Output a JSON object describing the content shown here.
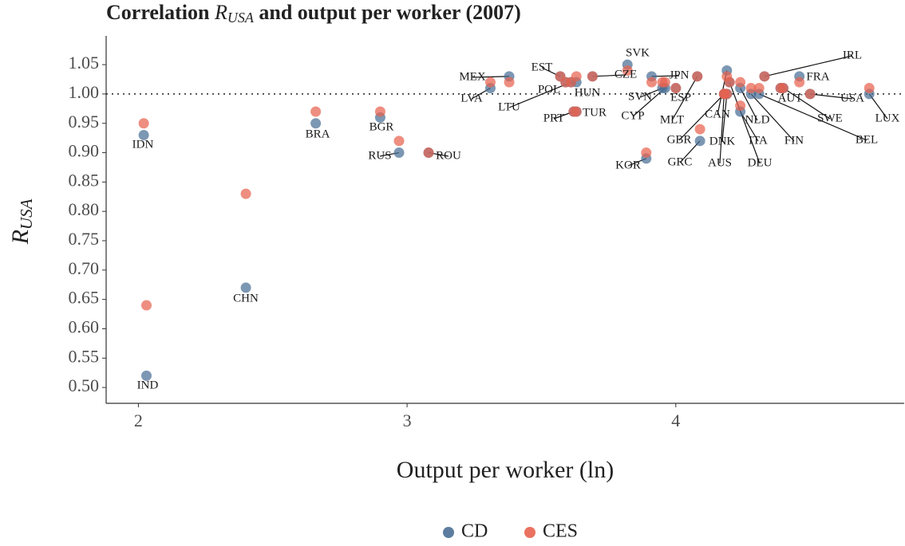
{
  "chart_data": {
    "type": "scatter",
    "title": {
      "before": "Correlation ",
      "symbol": "R",
      "subscript": "USA",
      "after": " and output per worker (2007)"
    },
    "x_label": "Output per worker (ln)",
    "y_label": {
      "symbol": "R",
      "subscript": "USA"
    },
    "labels": [
      "IDN",
      "IND",
      "CHN",
      "BRA",
      "BGR",
      "RUS",
      "ROU",
      "LVA",
      "MEX",
      "EST",
      "POL",
      "LTU",
      "HUN",
      "PRT",
      "TUR",
      "CZE",
      "SVK",
      "KOR",
      "JPN",
      "SVN",
      "CYP",
      "ESP",
      "MLT",
      "GRC",
      "GBR",
      "CAN",
      "DNK",
      "AUS",
      "DEU",
      "ITA",
      "NLD",
      "FIN",
      "AUT",
      "IRL",
      "BEL",
      "SWE",
      "FRA",
      "USA",
      "LUX"
    ],
    "x": [
      2.02,
      2.03,
      2.4,
      2.66,
      2.9,
      2.97,
      3.08,
      3.31,
      3.38,
      3.57,
      3.59,
      3.61,
      3.63,
      3.62,
      3.63,
      3.69,
      3.82,
      3.89,
      3.91,
      3.95,
      3.96,
      4.0,
      4.08,
      4.09,
      4.18,
      4.19,
      4.19,
      4.18,
      4.2,
      4.24,
      4.24,
      4.28,
      4.39,
      4.33,
      4.31,
      4.4,
      4.46,
      4.5,
      4.72
    ],
    "series": [
      {
        "name": "CD",
        "color": "#4a6f95",
        "values": [
          0.93,
          0.52,
          0.67,
          0.95,
          0.96,
          0.9,
          0.9,
          1.01,
          1.03,
          1.03,
          1.02,
          1.02,
          1.02,
          0.97,
          0.97,
          1.03,
          1.05,
          0.89,
          1.03,
          1.01,
          1.01,
          1.01,
          1.03,
          0.92,
          1.0,
          1.04,
          1.0,
          1.0,
          1.02,
          0.97,
          1.01,
          1.0,
          1.01,
          1.03,
          1.0,
          1.01,
          1.03,
          1.0,
          1.0
        ]
      },
      {
        "name": "CES",
        "color": "#e8634f",
        "values": [
          0.95,
          0.64,
          0.83,
          0.97,
          0.97,
          0.92,
          0.9,
          1.02,
          1.02,
          1.03,
          1.02,
          1.02,
          1.03,
          0.97,
          0.97,
          1.03,
          1.04,
          0.9,
          1.02,
          1.02,
          1.02,
          1.01,
          1.03,
          0.94,
          1.0,
          1.03,
          1.0,
          1.0,
          1.02,
          0.98,
          1.02,
          1.01,
          1.01,
          1.03,
          1.01,
          1.01,
          1.02,
          1.0,
          1.01
        ]
      }
    ],
    "reference_line": 1.0,
    "xlim": [
      1.88,
      4.85
    ],
    "ylim": [
      0.473,
      1.099
    ],
    "xticks": [
      2,
      3,
      4
    ],
    "yticks": [
      {
        "value": 0.5,
        "label": "0.50"
      },
      {
        "value": 0.55,
        "label": "0.55"
      },
      {
        "value": 0.6,
        "label": "0.60"
      },
      {
        "value": 0.65,
        "label": "0.65"
      },
      {
        "value": 0.7,
        "label": "0.70"
      },
      {
        "value": 0.75,
        "label": "0.75"
      },
      {
        "value": 0.8,
        "label": "0.80"
      },
      {
        "value": 0.85,
        "label": "0.85"
      },
      {
        "value": 0.9,
        "label": "0.90"
      },
      {
        "value": 0.95,
        "label": "0.95"
      },
      {
        "value": 1.0,
        "label": "1.00"
      },
      {
        "value": 1.05,
        "label": "1.05"
      }
    ],
    "legend": "bottom"
  }
}
